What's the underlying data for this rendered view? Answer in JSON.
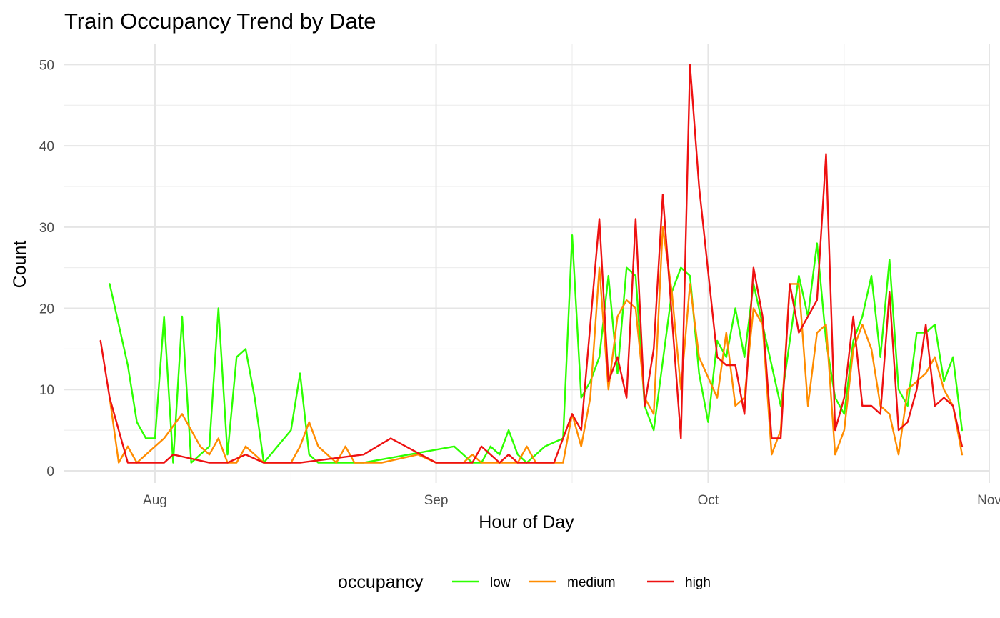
{
  "chart_data": {
    "type": "line",
    "title": "Train Occupancy Trend by Date",
    "xlabel": "Hour of Day",
    "ylabel": "Count",
    "x_type": "date",
    "xlim": [
      "2016-07-22",
      "2016-11-01"
    ],
    "ylim": [
      -1.5,
      52.5
    ],
    "x_ticks": [
      {
        "label": "Aug",
        "date": "2016-08-01"
      },
      {
        "label": "Sep",
        "date": "2016-09-01"
      },
      {
        "label": "Oct",
        "date": "2016-10-01"
      },
      {
        "label": "Nov",
        "date": "2016-11-01"
      }
    ],
    "x_minor_ticks": [
      "2016-08-16",
      "2016-09-16",
      "2016-10-16"
    ],
    "y_ticks": [
      0,
      10,
      20,
      30,
      40,
      50
    ],
    "y_minor_ticks": [
      5,
      15,
      25,
      35,
      45
    ],
    "grid": true,
    "legend": {
      "title": "occupancy",
      "position": "bottom"
    },
    "series": [
      {
        "name": "low",
        "color": "#2dff00",
        "points": [
          [
            "2016-07-27",
            23
          ],
          [
            "2016-07-29",
            13
          ],
          [
            "2016-07-30",
            6
          ],
          [
            "2016-07-31",
            4
          ],
          [
            "2016-08-01",
            4
          ],
          [
            "2016-08-02",
            19
          ],
          [
            "2016-08-03",
            1
          ],
          [
            "2016-08-04",
            19
          ],
          [
            "2016-08-05",
            1
          ],
          [
            "2016-08-07",
            3
          ],
          [
            "2016-08-08",
            20
          ],
          [
            "2016-08-09",
            2
          ],
          [
            "2016-08-10",
            14
          ],
          [
            "2016-08-11",
            15
          ],
          [
            "2016-08-12",
            9
          ],
          [
            "2016-08-13",
            1
          ],
          [
            "2016-08-16",
            5
          ],
          [
            "2016-08-17",
            12
          ],
          [
            "2016-08-18",
            2
          ],
          [
            "2016-08-19",
            1
          ],
          [
            "2016-08-23",
            1
          ],
          [
            "2016-08-24",
            1
          ],
          [
            "2016-09-03",
            3
          ],
          [
            "2016-09-05",
            1
          ],
          [
            "2016-09-06",
            1
          ],
          [
            "2016-09-07",
            3
          ],
          [
            "2016-09-08",
            2
          ],
          [
            "2016-09-09",
            5
          ],
          [
            "2016-09-10",
            2
          ],
          [
            "2016-09-11",
            1
          ],
          [
            "2016-09-13",
            3
          ],
          [
            "2016-09-15",
            4
          ],
          [
            "2016-09-16",
            29
          ],
          [
            "2016-09-17",
            9
          ],
          [
            "2016-09-18",
            11
          ],
          [
            "2016-09-19",
            14
          ],
          [
            "2016-09-20",
            24
          ],
          [
            "2016-09-21",
            12
          ],
          [
            "2016-09-22",
            25
          ],
          [
            "2016-09-23",
            24
          ],
          [
            "2016-09-24",
            8
          ],
          [
            "2016-09-25",
            5
          ],
          [
            "2016-09-27",
            22
          ],
          [
            "2016-09-28",
            25
          ],
          [
            "2016-09-29",
            24
          ],
          [
            "2016-09-30",
            12
          ],
          [
            "2016-10-01",
            6
          ],
          [
            "2016-10-02",
            16
          ],
          [
            "2016-10-03",
            14
          ],
          [
            "2016-10-04",
            20
          ],
          [
            "2016-10-05",
            14
          ],
          [
            "2016-10-06",
            23
          ],
          [
            "2016-10-08",
            13
          ],
          [
            "2016-10-09",
            8
          ],
          [
            "2016-10-10",
            16
          ],
          [
            "2016-10-11",
            24
          ],
          [
            "2016-10-12",
            19
          ],
          [
            "2016-10-13",
            28
          ],
          [
            "2016-10-14",
            16
          ],
          [
            "2016-10-15",
            9
          ],
          [
            "2016-10-16",
            7
          ],
          [
            "2016-10-17",
            16
          ],
          [
            "2016-10-18",
            19
          ],
          [
            "2016-10-19",
            24
          ],
          [
            "2016-10-20",
            14
          ],
          [
            "2016-10-21",
            26
          ],
          [
            "2016-10-22",
            10
          ],
          [
            "2016-10-23",
            8
          ],
          [
            "2016-10-24",
            17
          ],
          [
            "2016-10-25",
            17
          ],
          [
            "2016-10-26",
            18
          ],
          [
            "2016-10-27",
            11
          ],
          [
            "2016-10-28",
            14
          ],
          [
            "2016-10-29",
            5
          ]
        ]
      },
      {
        "name": "medium",
        "color": "#ff8c00",
        "points": [
          [
            "2016-07-27",
            9
          ],
          [
            "2016-07-28",
            1
          ],
          [
            "2016-07-29",
            3
          ],
          [
            "2016-07-30",
            1
          ],
          [
            "2016-08-01",
            3
          ],
          [
            "2016-08-02",
            4
          ],
          [
            "2016-08-04",
            7
          ],
          [
            "2016-08-06",
            3
          ],
          [
            "2016-08-07",
            2
          ],
          [
            "2016-08-08",
            4
          ],
          [
            "2016-08-09",
            1
          ],
          [
            "2016-08-10",
            1
          ],
          [
            "2016-08-11",
            3
          ],
          [
            "2016-08-12",
            2
          ],
          [
            "2016-08-13",
            1
          ],
          [
            "2016-08-16",
            1
          ],
          [
            "2016-08-17",
            3
          ],
          [
            "2016-08-18",
            6
          ],
          [
            "2016-08-19",
            3
          ],
          [
            "2016-08-20",
            2
          ],
          [
            "2016-08-21",
            1
          ],
          [
            "2016-08-22",
            3
          ],
          [
            "2016-08-23",
            1
          ],
          [
            "2016-08-26",
            1
          ],
          [
            "2016-08-30",
            2
          ],
          [
            "2016-09-01",
            1
          ],
          [
            "2016-09-04",
            1
          ],
          [
            "2016-09-05",
            2
          ],
          [
            "2016-09-06",
            1
          ],
          [
            "2016-09-10",
            1
          ],
          [
            "2016-09-11",
            3
          ],
          [
            "2016-09-12",
            1
          ],
          [
            "2016-09-14",
            1
          ],
          [
            "2016-09-15",
            1
          ],
          [
            "2016-09-16",
            7
          ],
          [
            "2016-09-17",
            3
          ],
          [
            "2016-09-18",
            9
          ],
          [
            "2016-09-19",
            25
          ],
          [
            "2016-09-20",
            10
          ],
          [
            "2016-09-21",
            19
          ],
          [
            "2016-09-22",
            21
          ],
          [
            "2016-09-23",
            20
          ],
          [
            "2016-09-24",
            9
          ],
          [
            "2016-09-25",
            7
          ],
          [
            "2016-09-26",
            30
          ],
          [
            "2016-09-27",
            22
          ],
          [
            "2016-09-28",
            10
          ],
          [
            "2016-09-29",
            23
          ],
          [
            "2016-09-30",
            14
          ],
          [
            "2016-10-02",
            9
          ],
          [
            "2016-10-03",
            17
          ],
          [
            "2016-10-04",
            8
          ],
          [
            "2016-10-05",
            9
          ],
          [
            "2016-10-06",
            20
          ],
          [
            "2016-10-07",
            18
          ],
          [
            "2016-10-08",
            2
          ],
          [
            "2016-10-09",
            5
          ],
          [
            "2016-10-10",
            23
          ],
          [
            "2016-10-11",
            23
          ],
          [
            "2016-10-12",
            8
          ],
          [
            "2016-10-13",
            17
          ],
          [
            "2016-10-14",
            18
          ],
          [
            "2016-10-15",
            2
          ],
          [
            "2016-10-16",
            5
          ],
          [
            "2016-10-17",
            15
          ],
          [
            "2016-10-18",
            18
          ],
          [
            "2016-10-19",
            15
          ],
          [
            "2016-10-20",
            8
          ],
          [
            "2016-10-21",
            7
          ],
          [
            "2016-10-22",
            2
          ],
          [
            "2016-10-23",
            10
          ],
          [
            "2016-10-25",
            12
          ],
          [
            "2016-10-26",
            14
          ],
          [
            "2016-10-27",
            10
          ],
          [
            "2016-10-28",
            8
          ],
          [
            "2016-10-29",
            2
          ]
        ]
      },
      {
        "name": "high",
        "color": "#ee1111",
        "points": [
          [
            "2016-07-26",
            16
          ],
          [
            "2016-07-27",
            9
          ],
          [
            "2016-07-29",
            1
          ],
          [
            "2016-08-02",
            1
          ],
          [
            "2016-08-03",
            2
          ],
          [
            "2016-08-07",
            1
          ],
          [
            "2016-08-09",
            1
          ],
          [
            "2016-08-11",
            2
          ],
          [
            "2016-08-13",
            1
          ],
          [
            "2016-08-17",
            1
          ],
          [
            "2016-08-24",
            2
          ],
          [
            "2016-08-27",
            4
          ],
          [
            "2016-09-01",
            1
          ],
          [
            "2016-09-05",
            1
          ],
          [
            "2016-09-06",
            3
          ],
          [
            "2016-09-08",
            1
          ],
          [
            "2016-09-09",
            2
          ],
          [
            "2016-09-10",
            1
          ],
          [
            "2016-09-14",
            1
          ],
          [
            "2016-09-16",
            7
          ],
          [
            "2016-09-17",
            5
          ],
          [
            "2016-09-19",
            31
          ],
          [
            "2016-09-20",
            11
          ],
          [
            "2016-09-21",
            14
          ],
          [
            "2016-09-22",
            9
          ],
          [
            "2016-09-23",
            31
          ],
          [
            "2016-09-24",
            8
          ],
          [
            "2016-09-25",
            15
          ],
          [
            "2016-09-26",
            34
          ],
          [
            "2016-09-27",
            19
          ],
          [
            "2016-09-28",
            4
          ],
          [
            "2016-09-29",
            50
          ],
          [
            "2016-09-30",
            35
          ],
          [
            "2016-10-02",
            14
          ],
          [
            "2016-10-03",
            13
          ],
          [
            "2016-10-04",
            13
          ],
          [
            "2016-10-05",
            7
          ],
          [
            "2016-10-06",
            25
          ],
          [
            "2016-10-07",
            19
          ],
          [
            "2016-10-08",
            4
          ],
          [
            "2016-10-09",
            4
          ],
          [
            "2016-10-10",
            23
          ],
          [
            "2016-10-11",
            17
          ],
          [
            "2016-10-12",
            19
          ],
          [
            "2016-10-13",
            21
          ],
          [
            "2016-10-14",
            39
          ],
          [
            "2016-10-15",
            5
          ],
          [
            "2016-10-16",
            9
          ],
          [
            "2016-10-17",
            19
          ],
          [
            "2016-10-18",
            8
          ],
          [
            "2016-10-19",
            8
          ],
          [
            "2016-10-20",
            7
          ],
          [
            "2016-10-21",
            22
          ],
          [
            "2016-10-22",
            5
          ],
          [
            "2016-10-23",
            6
          ],
          [
            "2016-10-24",
            10
          ],
          [
            "2016-10-25",
            18
          ],
          [
            "2016-10-26",
            8
          ],
          [
            "2016-10-27",
            9
          ],
          [
            "2016-10-28",
            8
          ],
          [
            "2016-10-29",
            3
          ]
        ]
      }
    ]
  }
}
